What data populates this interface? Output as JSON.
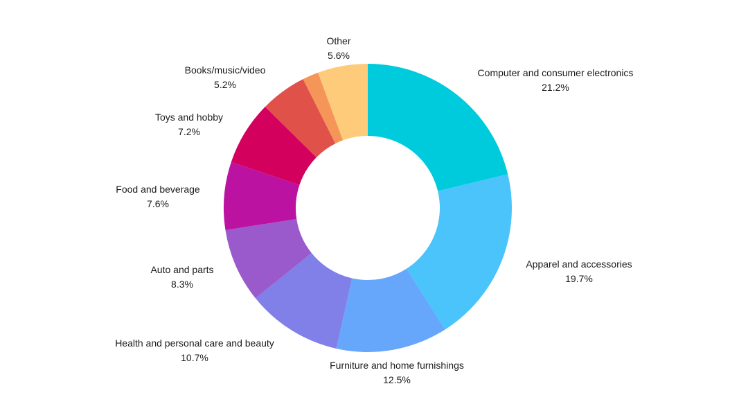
{
  "chart_data": {
    "type": "pie",
    "variant": "donut",
    "legend": "none",
    "series": [
      {
        "name": "",
        "values": [
          21.2,
          19.7,
          12.5,
          10.7,
          8.3,
          7.6,
          7.2,
          5.2,
          1.8,
          5.6
        ]
      }
    ],
    "slices": [
      {
        "category": "Computer and consumer electronics",
        "value": 21.2,
        "label": "21.2%",
        "color": "#00CBDD",
        "show_label": true
      },
      {
        "category": "Apparel and accessories",
        "value": 19.7,
        "label": "19.7%",
        "color": "#4BC3FB",
        "show_label": true
      },
      {
        "category": "Furniture and home furnishings",
        "value": 12.5,
        "label": "12.5%",
        "color": "#66A6FB",
        "show_label": true
      },
      {
        "category": "Health and personal care and beauty",
        "value": 10.7,
        "label": "10.7%",
        "color": "#817FE8",
        "show_label": true
      },
      {
        "category": "Auto and parts",
        "value": 8.3,
        "label": "8.3%",
        "color": "#9B5ACC",
        "show_label": true
      },
      {
        "category": "Food and beverage",
        "value": 7.6,
        "label": "7.6%",
        "color": "#BC12A2",
        "show_label": true
      },
      {
        "category": "Toys and hobby",
        "value": 7.2,
        "label": "7.2%",
        "color": "#D3005D",
        "show_label": true
      },
      {
        "category": "Books/music/video",
        "value": 5.2,
        "label": "5.2%",
        "color": "#E0514A",
        "show_label": true
      },
      {
        "category": "",
        "value": 1.8,
        "label": "",
        "color": "#F59558",
        "show_label": false
      },
      {
        "category": "Other",
        "value": 5.6,
        "label": "5.6%",
        "color": "#FECB7A",
        "show_label": true
      }
    ]
  }
}
